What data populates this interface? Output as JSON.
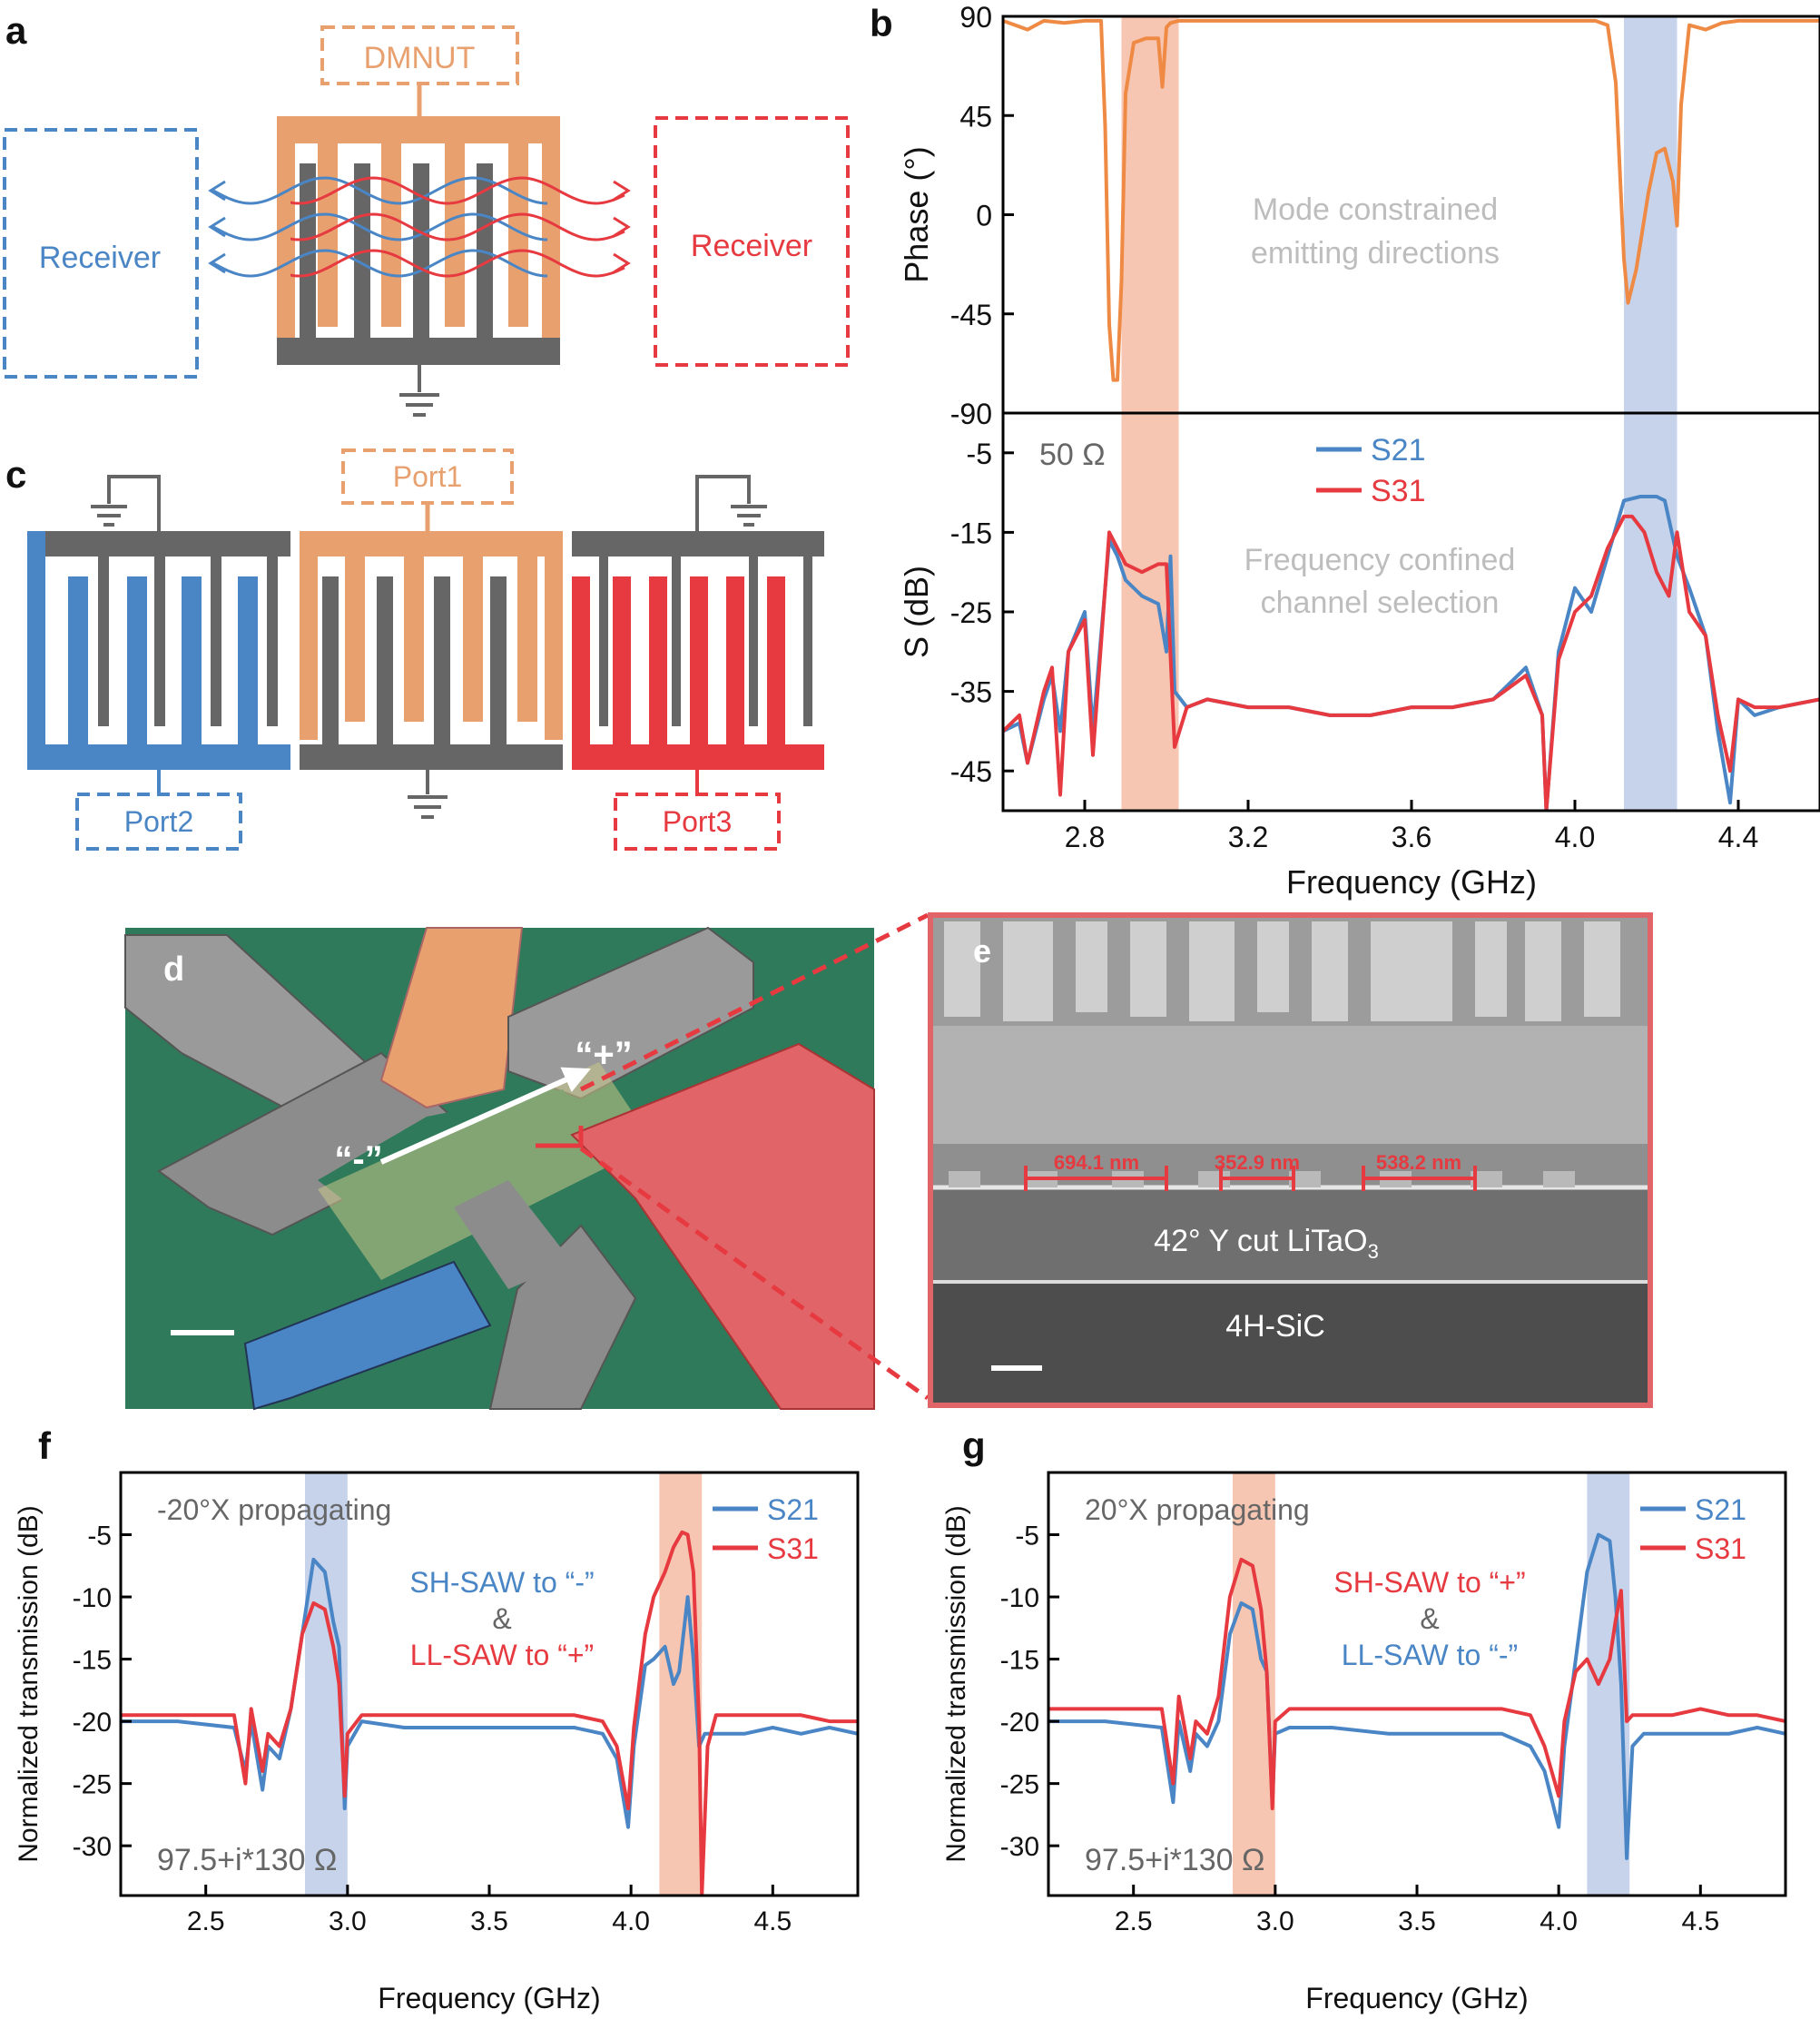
{
  "colors": {
    "orange": "#e8a06f",
    "orange_line": "#ef8a45",
    "blue": "#4a86c5",
    "red": "#e63a40",
    "gray": "#666666",
    "light_gray": "#bdbdbd",
    "orange_band": "#f5bca5",
    "blue_band": "#bccbe8",
    "green_bg": "#2f7a5a"
  },
  "panel_a": {
    "label": "a",
    "dmnut": "DMNUT",
    "receiver_left": "Receiver",
    "receiver_right": "Receiver"
  },
  "panel_c": {
    "label": "c",
    "port1": "Port1",
    "port2": "Port2",
    "port3": "Port3"
  },
  "panel_d": {
    "label": "d",
    "minus_label": "“-”",
    "plus_label": "“+”"
  },
  "panel_e": {
    "label": "e",
    "dim1": "694.1 nm",
    "dim2": "352.9 nm",
    "dim3": "538.2 nm",
    "layer_top_main": "42° Y cut LiTaO",
    "layer_top_sub": "3",
    "layer_bottom": "4H-SiC"
  },
  "chart_data": [
    {
      "panel": "b",
      "type": "line",
      "label": "b",
      "title": "",
      "xlabel": "Frequency (GHz)",
      "x_ticks": [
        "2.8",
        "3.2",
        "3.6",
        "4.0",
        "4.4"
      ],
      "x_tick_values": [
        2.8,
        3.2,
        3.6,
        4.0,
        4.4
      ],
      "xlim": [
        2.6,
        4.6
      ],
      "highlight_bands": [
        {
          "from": 2.89,
          "to": 3.03,
          "color": "orange"
        },
        {
          "from": 4.12,
          "to": 4.25,
          "color": "blue"
        }
      ],
      "subplots": [
        {
          "name": "phase",
          "ylabel": "Phase (°)",
          "ylim": [
            -90,
            90
          ],
          "y_ticks": [
            "90",
            "45",
            "0",
            "-45",
            "-90"
          ],
          "y_tick_values": [
            90,
            45,
            0,
            -45,
            -90
          ],
          "annotation": [
            "Mode constrained",
            "emitting directions"
          ],
          "series": [
            {
              "name": "Phase",
              "color": "orange_line",
              "x": [
                2.6,
                2.66,
                2.7,
                2.75,
                2.8,
                2.84,
                2.85,
                2.86,
                2.87,
                2.88,
                2.89,
                2.9,
                2.92,
                2.95,
                2.98,
                2.99,
                3.0,
                3.01,
                3.03,
                3.1,
                3.3,
                3.5,
                3.7,
                3.9,
                4.05,
                4.08,
                4.1,
                4.12,
                4.13,
                4.15,
                4.18,
                4.2,
                4.22,
                4.24,
                4.25,
                4.26,
                4.28,
                4.32,
                4.36,
                4.4,
                4.5,
                4.6
              ],
              "y": [
                88,
                84,
                88,
                87,
                88,
                88,
                40,
                -50,
                -75,
                -75,
                -30,
                55,
                78,
                80,
                80,
                58,
                85,
                87,
                88,
                88,
                88,
                88,
                88,
                88,
                88,
                86,
                60,
                -20,
                -40,
                -25,
                10,
                28,
                30,
                15,
                -5,
                50,
                86,
                84,
                87,
                88,
                88,
                88
              ]
            }
          ]
        },
        {
          "name": "s_params",
          "ylabel": "S (dB)",
          "ylim": [
            -50,
            0
          ],
          "y_ticks": [
            "-5",
            "-15",
            "-25",
            "-35",
            "-45"
          ],
          "y_tick_values": [
            -5,
            -15,
            -25,
            -35,
            -45
          ],
          "annotation": [
            "Frequency confined",
            "channel selection"
          ],
          "impedance_note": "50 Ω",
          "series": [
            {
              "name": "S21",
              "color": "blue",
              "x": [
                2.6,
                2.64,
                2.66,
                2.7,
                2.72,
                2.74,
                2.76,
                2.8,
                2.82,
                2.86,
                2.88,
                2.9,
                2.94,
                2.98,
                3.0,
                3.01,
                3.02,
                3.05,
                3.1,
                3.2,
                3.3,
                3.4,
                3.5,
                3.6,
                3.7,
                3.8,
                3.88,
                3.92,
                3.93,
                3.96,
                4.0,
                4.04,
                4.08,
                4.12,
                4.16,
                4.2,
                4.22,
                4.25,
                4.28,
                4.32,
                4.35,
                4.38,
                4.4,
                4.44,
                4.5,
                4.6
              ],
              "y": [
                -40,
                -39,
                -44,
                -36,
                -33,
                -40,
                -30,
                -25,
                -40,
                -16,
                -18,
                -21,
                -23,
                -24,
                -30,
                -18,
                -35,
                -37,
                -36,
                -37,
                -37,
                -38,
                -38,
                -37,
                -37,
                -36,
                -32,
                -38,
                -50,
                -30,
                -22,
                -25,
                -18,
                -11,
                -10.5,
                -10.5,
                -11,
                -18,
                -22,
                -28,
                -40,
                -49,
                -36,
                -38,
                -37,
                -36
              ]
            },
            {
              "name": "S31",
              "color": "red",
              "x": [
                2.6,
                2.64,
                2.66,
                2.7,
                2.72,
                2.74,
                2.76,
                2.8,
                2.82,
                2.86,
                2.88,
                2.9,
                2.94,
                2.98,
                3.0,
                3.02,
                3.05,
                3.1,
                3.2,
                3.3,
                3.4,
                3.5,
                3.6,
                3.7,
                3.8,
                3.88,
                3.92,
                3.93,
                3.96,
                4.0,
                4.04,
                4.08,
                4.12,
                4.14,
                4.17,
                4.2,
                4.23,
                4.25,
                4.28,
                4.32,
                4.35,
                4.38,
                4.4,
                4.44,
                4.5,
                4.6
              ],
              "y": [
                -40,
                -38,
                -44,
                -35,
                -32,
                -48,
                -30,
                -26,
                -43,
                -15,
                -17,
                -19,
                -20,
                -19,
                -19,
                -42,
                -37,
                -36,
                -37,
                -37,
                -38,
                -38,
                -37,
                -37,
                -36,
                -33,
                -38,
                -50,
                -31,
                -25,
                -23,
                -17,
                -13,
                -13,
                -15,
                -20,
                -23,
                -15,
                -25,
                -28,
                -38,
                -45,
                -36,
                -37,
                -37,
                -36
              ]
            }
          ]
        }
      ]
    },
    {
      "panel": "f",
      "type": "line",
      "label": "f",
      "xlabel": "Frequency (GHz)",
      "ylabel": "Normalized transmission (dB)",
      "xlim": [
        2.2,
        4.8
      ],
      "ylim": [
        -34,
        0
      ],
      "x_ticks": [
        "2.5",
        "3.0",
        "3.5",
        "4.0",
        "4.5"
      ],
      "x_tick_values": [
        2.5,
        3.0,
        3.5,
        4.0,
        4.5
      ],
      "y_ticks": [
        "-5",
        "-10",
        "-15",
        "-20",
        "-25",
        "-30"
      ],
      "y_tick_values": [
        -5,
        -10,
        -15,
        -20,
        -25,
        -30
      ],
      "top_note": "-20°X propagating",
      "bottom_note": "97.5+i*130 Ω",
      "annotation": [
        {
          "text": "SH-SAW to “-”",
          "color": "blue"
        },
        {
          "text": "&",
          "color": "gray"
        },
        {
          "text": "LL-SAW to “+”",
          "color": "red"
        }
      ],
      "highlight_bands": [
        {
          "from": 2.85,
          "to": 3.0,
          "color": "blue"
        },
        {
          "from": 4.1,
          "to": 4.25,
          "color": "orange"
        }
      ],
      "series": [
        {
          "name": "S21",
          "color": "blue",
          "x": [
            2.2,
            2.4,
            2.6,
            2.64,
            2.66,
            2.7,
            2.72,
            2.76,
            2.8,
            2.84,
            2.88,
            2.92,
            2.95,
            2.97,
            2.99,
            3.0,
            3.05,
            3.2,
            3.4,
            3.6,
            3.8,
            3.9,
            3.95,
            3.99,
            4.01,
            4.05,
            4.08,
            4.12,
            4.15,
            4.17,
            4.2,
            4.22,
            4.24,
            4.26,
            4.3,
            4.4,
            4.5,
            4.6,
            4.7,
            4.8
          ],
          "y": [
            -20,
            -20,
            -20.5,
            -24,
            -20,
            -25.5,
            -22,
            -23,
            -19,
            -13,
            -7,
            -8,
            -12,
            -14,
            -27,
            -22,
            -20,
            -20.5,
            -20.5,
            -20.5,
            -20.5,
            -21,
            -23,
            -28.5,
            -22,
            -15.5,
            -15,
            -14,
            -17,
            -16,
            -10,
            -15,
            -22,
            -21,
            -21,
            -21,
            -20.5,
            -21,
            -20.5,
            -21
          ]
        },
        {
          "name": "S31",
          "color": "red",
          "x": [
            2.2,
            2.4,
            2.6,
            2.64,
            2.66,
            2.7,
            2.72,
            2.76,
            2.8,
            2.84,
            2.88,
            2.92,
            2.95,
            2.97,
            2.99,
            3.0,
            3.05,
            3.2,
            3.4,
            3.6,
            3.8,
            3.9,
            3.95,
            3.99,
            4.01,
            4.05,
            4.08,
            4.12,
            4.15,
            4.18,
            4.2,
            4.22,
            4.24,
            4.25,
            4.27,
            4.3,
            4.4,
            4.5,
            4.6,
            4.7,
            4.8
          ],
          "y": [
            -19.5,
            -19.5,
            -19.5,
            -25,
            -19,
            -24,
            -21,
            -22,
            -19,
            -13,
            -10.5,
            -11,
            -14,
            -17,
            -26,
            -21,
            -19.5,
            -19.5,
            -19.5,
            -19.5,
            -19.5,
            -20,
            -22,
            -27,
            -20.5,
            -13,
            -10,
            -8,
            -6,
            -4.8,
            -5,
            -8,
            -20,
            -34,
            -22,
            -19.5,
            -19.5,
            -19.5,
            -19.5,
            -20,
            -20
          ]
        }
      ]
    },
    {
      "panel": "g",
      "type": "line",
      "label": "g",
      "xlabel": "Frequency (GHz)",
      "ylabel": "Normalized transmission (dB)",
      "xlim": [
        2.2,
        4.8
      ],
      "ylim": [
        -34,
        0
      ],
      "x_ticks": [
        "2.5",
        "3.0",
        "3.5",
        "4.0",
        "4.5"
      ],
      "x_tick_values": [
        2.5,
        3.0,
        3.5,
        4.0,
        4.5
      ],
      "y_ticks": [
        "-5",
        "-10",
        "-15",
        "-20",
        "-25",
        "-30"
      ],
      "y_tick_values": [
        -5,
        -10,
        -15,
        -20,
        -25,
        -30
      ],
      "top_note": "20°X propagating",
      "bottom_note": "97.5+i*130 Ω",
      "annotation": [
        {
          "text": "SH-SAW to “+”",
          "color": "red"
        },
        {
          "text": "&",
          "color": "gray"
        },
        {
          "text": "LL-SAW to “-”",
          "color": "blue"
        }
      ],
      "highlight_bands": [
        {
          "from": 2.85,
          "to": 3.0,
          "color": "orange"
        },
        {
          "from": 4.1,
          "to": 4.25,
          "color": "blue"
        }
      ],
      "series": [
        {
          "name": "S21",
          "color": "blue",
          "x": [
            2.2,
            2.4,
            2.6,
            2.64,
            2.66,
            2.7,
            2.72,
            2.76,
            2.8,
            2.84,
            2.88,
            2.92,
            2.95,
            2.97,
            2.99,
            3.0,
            3.05,
            3.2,
            3.4,
            3.6,
            3.8,
            3.9,
            3.95,
            4.0,
            4.02,
            4.06,
            4.1,
            4.14,
            4.18,
            4.2,
            4.22,
            4.24,
            4.26,
            4.3,
            4.4,
            4.5,
            4.6,
            4.7,
            4.8
          ],
          "y": [
            -20,
            -20,
            -20.5,
            -26.5,
            -20,
            -24,
            -21,
            -22,
            -20,
            -13,
            -10.5,
            -11,
            -15,
            -16,
            -26.5,
            -21,
            -20.5,
            -20.5,
            -21,
            -21,
            -21,
            -22,
            -24,
            -28.5,
            -22,
            -15,
            -8,
            -5,
            -5.5,
            -10,
            -17,
            -31,
            -22,
            -21,
            -21,
            -21,
            -21,
            -20.5,
            -21
          ]
        },
        {
          "name": "S31",
          "color": "red",
          "x": [
            2.2,
            2.4,
            2.6,
            2.64,
            2.66,
            2.7,
            2.72,
            2.76,
            2.8,
            2.84,
            2.88,
            2.92,
            2.95,
            2.97,
            2.99,
            3.0,
            3.05,
            3.2,
            3.4,
            3.6,
            3.8,
            3.9,
            3.95,
            4.0,
            4.02,
            4.06,
            4.1,
            4.14,
            4.18,
            4.2,
            4.22,
            4.24,
            4.26,
            4.3,
            4.4,
            4.5,
            4.6,
            4.7,
            4.8
          ],
          "y": [
            -19,
            -19,
            -19,
            -25,
            -18,
            -23,
            -20,
            -21,
            -18,
            -10,
            -7,
            -7.5,
            -11,
            -16,
            -27,
            -20,
            -19,
            -19,
            -19,
            -19,
            -19,
            -19.5,
            -22,
            -26,
            -20,
            -16,
            -15,
            -17,
            -15,
            -12,
            -9.5,
            -20,
            -19.5,
            -19.5,
            -19.5,
            -19,
            -19.5,
            -19.5,
            -20
          ]
        }
      ]
    }
  ]
}
